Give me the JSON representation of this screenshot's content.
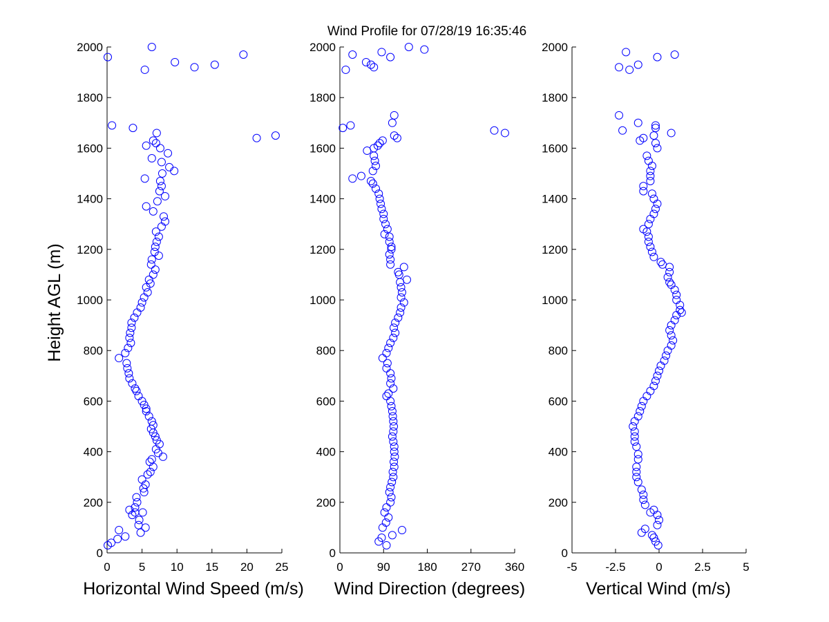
{
  "title": "Wind Profile for  07/28/19 16:35:46",
  "colors": {
    "marker": "#0000ff",
    "axis": "#000000",
    "background": "#ffffff"
  },
  "chart_data": [
    {
      "type": "scatter",
      "name": "horizontal-wind-speed",
      "xlabel": "Horizontal Wind Speed (m/s)",
      "ylabel": "Height AGL (m)",
      "xlim": [
        0,
        25
      ],
      "ylim": [
        0,
        2000
      ],
      "xticks": [
        0,
        5,
        10,
        15,
        20,
        25
      ],
      "xtick_labels": [
        "0",
        "5",
        "10",
        "15",
        "20",
        "25"
      ],
      "yticks": [
        0,
        200,
        400,
        600,
        800,
        1000,
        1200,
        1400,
        1600,
        1800,
        2000
      ],
      "ytick_labels": [
        "0",
        "200",
        "400",
        "600",
        "800",
        "1000",
        "1200",
        "1400",
        "1600",
        "1800",
        "2000"
      ],
      "points": [
        [
          0.1,
          30
        ],
        [
          0.6,
          40
        ],
        [
          1.5,
          55
        ],
        [
          2.6,
          65
        ],
        [
          1.7,
          90
        ],
        [
          4.8,
          80
        ],
        [
          5.5,
          100
        ],
        [
          4.5,
          110
        ],
        [
          4.6,
          130
        ],
        [
          5.1,
          160
        ],
        [
          4.0,
          160
        ],
        [
          3.6,
          150
        ],
        [
          3.2,
          170
        ],
        [
          4.0,
          180
        ],
        [
          4.3,
          200
        ],
        [
          4.2,
          220
        ],
        [
          5.3,
          240
        ],
        [
          5.2,
          255
        ],
        [
          5.5,
          270
        ],
        [
          5.0,
          290
        ],
        [
          5.8,
          310
        ],
        [
          6.2,
          320
        ],
        [
          6.6,
          340
        ],
        [
          6.1,
          360
        ],
        [
          6.4,
          370
        ],
        [
          8.0,
          380
        ],
        [
          7.3,
          395
        ],
        [
          7.0,
          410
        ],
        [
          7.5,
          430
        ],
        [
          7.1,
          445
        ],
        [
          6.9,
          460
        ],
        [
          6.6,
          475
        ],
        [
          6.3,
          490
        ],
        [
          6.6,
          505
        ],
        [
          6.4,
          520
        ],
        [
          6.0,
          540
        ],
        [
          5.6,
          560
        ],
        [
          5.6,
          570
        ],
        [
          5.3,
          585
        ],
        [
          5.0,
          600
        ],
        [
          4.5,
          620
        ],
        [
          4.2,
          640
        ],
        [
          4.0,
          650
        ],
        [
          3.6,
          670
        ],
        [
          3.2,
          690
        ],
        [
          3.1,
          710
        ],
        [
          2.9,
          730
        ],
        [
          2.8,
          750
        ],
        [
          1.7,
          770
        ],
        [
          2.6,
          790
        ],
        [
          3.0,
          810
        ],
        [
          3.4,
          830
        ],
        [
          3.2,
          850
        ],
        [
          3.3,
          870
        ],
        [
          3.5,
          890
        ],
        [
          3.5,
          910
        ],
        [
          3.9,
          930
        ],
        [
          4.3,
          950
        ],
        [
          4.8,
          970
        ],
        [
          5.0,
          990
        ],
        [
          5.3,
          1010
        ],
        [
          5.8,
          1030
        ],
        [
          5.6,
          1050
        ],
        [
          6.2,
          1065
        ],
        [
          6.0,
          1080
        ],
        [
          6.6,
          1100
        ],
        [
          6.9,
          1120
        ],
        [
          6.3,
          1140
        ],
        [
          6.4,
          1160
        ],
        [
          7.4,
          1175
        ],
        [
          6.8,
          1190
        ],
        [
          6.9,
          1210
        ],
        [
          7.1,
          1230
        ],
        [
          7.4,
          1250
        ],
        [
          7.0,
          1270
        ],
        [
          7.8,
          1290
        ],
        [
          8.3,
          1310
        ],
        [
          8.1,
          1330
        ],
        [
          6.6,
          1350
        ],
        [
          5.6,
          1370
        ],
        [
          7.2,
          1390
        ],
        [
          8.3,
          1410
        ],
        [
          7.5,
          1430
        ],
        [
          7.8,
          1450
        ],
        [
          7.6,
          1470
        ],
        [
          5.4,
          1480
        ],
        [
          7.9,
          1500
        ],
        [
          9.6,
          1510
        ],
        [
          8.9,
          1525
        ],
        [
          7.8,
          1545
        ],
        [
          6.4,
          1560
        ],
        [
          8.7,
          1580
        ],
        [
          7.6,
          1600
        ],
        [
          5.6,
          1610
        ],
        [
          7.0,
          1620
        ],
        [
          6.6,
          1630
        ],
        [
          21.4,
          1640
        ],
        [
          24.1,
          1650
        ],
        [
          7.1,
          1660
        ],
        [
          3.7,
          1680
        ],
        [
          0.7,
          1690
        ],
        [
          5.4,
          1910
        ],
        [
          12.5,
          1920
        ],
        [
          15.4,
          1930
        ],
        [
          9.7,
          1940
        ],
        [
          0.1,
          1960
        ],
        [
          19.5,
          1970
        ],
        [
          6.4,
          2000
        ]
      ]
    },
    {
      "type": "scatter",
      "name": "wind-direction",
      "xlabel": "Wind Direction (degrees)",
      "ylabel": "",
      "xlim": [
        0,
        360
      ],
      "ylim": [
        0,
        2000
      ],
      "xticks": [
        0,
        90,
        180,
        270,
        360
      ],
      "xtick_labels": [
        "0",
        "90",
        "180",
        "270",
        "360"
      ],
      "yticks": [
        0,
        200,
        400,
        600,
        800,
        1000,
        1200,
        1400,
        1600,
        1800,
        2000
      ],
      "ytick_labels": [
        "0",
        "200",
        "400",
        "600",
        "800",
        "1000",
        "1200",
        "1400",
        "1600",
        "1800",
        "2000"
      ],
      "points": [
        [
          96,
          30
        ],
        [
          80,
          45
        ],
        [
          86,
          60
        ],
        [
          108,
          70
        ],
        [
          128,
          90
        ],
        [
          88,
          100
        ],
        [
          95,
          120
        ],
        [
          100,
          140
        ],
        [
          92,
          160
        ],
        [
          96,
          180
        ],
        [
          104,
          200
        ],
        [
          106,
          220
        ],
        [
          102,
          240
        ],
        [
          104,
          260
        ],
        [
          107,
          280
        ],
        [
          110,
          300
        ],
        [
          109,
          320
        ],
        [
          112,
          340
        ],
        [
          111,
          360
        ],
        [
          113,
          380
        ],
        [
          112,
          400
        ],
        [
          112,
          420
        ],
        [
          110,
          440
        ],
        [
          108,
          460
        ],
        [
          110,
          480
        ],
        [
          111,
          500
        ],
        [
          110,
          520
        ],
        [
          109,
          540
        ],
        [
          108,
          560
        ],
        [
          106,
          580
        ],
        [
          104,
          600
        ],
        [
          96,
          620
        ],
        [
          100,
          630
        ],
        [
          110,
          650
        ],
        [
          104,
          670
        ],
        [
          106,
          690
        ],
        [
          104,
          710
        ],
        [
          96,
          730
        ],
        [
          98,
          750
        ],
        [
          88,
          770
        ],
        [
          96,
          790
        ],
        [
          100,
          810
        ],
        [
          104,
          830
        ],
        [
          110,
          850
        ],
        [
          114,
          870
        ],
        [
          111,
          890
        ],
        [
          114,
          910
        ],
        [
          120,
          930
        ],
        [
          124,
          950
        ],
        [
          126,
          970
        ],
        [
          132,
          990
        ],
        [
          126,
          1010
        ],
        [
          128,
          1030
        ],
        [
          126,
          1050
        ],
        [
          124,
          1070
        ],
        [
          138,
          1080
        ],
        [
          122,
          1100
        ],
        [
          120,
          1110
        ],
        [
          132,
          1130
        ],
        [
          104,
          1140
        ],
        [
          104,
          1160
        ],
        [
          102,
          1180
        ],
        [
          106,
          1200
        ],
        [
          106,
          1210
        ],
        [
          102,
          1230
        ],
        [
          102,
          1250
        ],
        [
          92,
          1260
        ],
        [
          98,
          1280
        ],
        [
          94,
          1300
        ],
        [
          90,
          1320
        ],
        [
          90,
          1340
        ],
        [
          86,
          1360
        ],
        [
          84,
          1380
        ],
        [
          82,
          1400
        ],
        [
          80,
          1420
        ],
        [
          74,
          1440
        ],
        [
          68,
          1460
        ],
        [
          64,
          1470
        ],
        [
          44,
          1490
        ],
        [
          26,
          1480
        ],
        [
          68,
          1510
        ],
        [
          74,
          1530
        ],
        [
          72,
          1550
        ],
        [
          70,
          1570
        ],
        [
          56,
          1590
        ],
        [
          70,
          1600
        ],
        [
          78,
          1610
        ],
        [
          82,
          1620
        ],
        [
          88,
          1630
        ],
        [
          118,
          1640
        ],
        [
          112,
          1650
        ],
        [
          318,
          1670
        ],
        [
          340,
          1660
        ],
        [
          6,
          1680
        ],
        [
          22,
          1690
        ],
        [
          108,
          1700
        ],
        [
          112,
          1730
        ],
        [
          12,
          1910
        ],
        [
          70,
          1920
        ],
        [
          64,
          1930
        ],
        [
          54,
          1940
        ],
        [
          104,
          1960
        ],
        [
          26,
          1970
        ],
        [
          86,
          1980
        ],
        [
          142,
          2000
        ],
        [
          174,
          1990
        ]
      ]
    },
    {
      "type": "scatter",
      "name": "vertical-wind",
      "xlabel": "Vertical Wind (m/s)",
      "ylabel": "",
      "xlim": [
        -5,
        5
      ],
      "ylim": [
        0,
        2000
      ],
      "xticks": [
        -5,
        -2.5,
        0,
        2.5,
        5
      ],
      "xtick_labels": [
        "-5",
        "-2.5",
        "0",
        "2.5",
        "5"
      ],
      "yticks": [
        0,
        200,
        400,
        600,
        800,
        1000,
        1200,
        1400,
        1600,
        1800,
        2000
      ],
      "ytick_labels": [
        "0",
        "200",
        "400",
        "600",
        "800",
        "1000",
        "1200",
        "1400",
        "1600",
        "1800",
        "2000"
      ],
      "points": [
        [
          -0.05,
          30
        ],
        [
          -0.2,
          45
        ],
        [
          -0.3,
          60
        ],
        [
          -1.0,
          80
        ],
        [
          -0.4,
          70
        ],
        [
          -0.8,
          95
        ],
        [
          -0.1,
          110
        ],
        [
          0.0,
          130
        ],
        [
          -0.1,
          150
        ],
        [
          -0.5,
          160
        ],
        [
          -0.3,
          170
        ],
        [
          -0.8,
          190
        ],
        [
          -0.9,
          210
        ],
        [
          -0.9,
          230
        ],
        [
          -1.0,
          250
        ],
        [
          -1.2,
          280
        ],
        [
          -1.3,
          300
        ],
        [
          -1.3,
          320
        ],
        [
          -1.3,
          340
        ],
        [
          -1.2,
          370
        ],
        [
          -1.2,
          390
        ],
        [
          -1.3,
          420
        ],
        [
          -1.4,
          440
        ],
        [
          -1.4,
          460
        ],
        [
          -1.4,
          480
        ],
        [
          -1.5,
          500
        ],
        [
          -1.4,
          520
        ],
        [
          -1.2,
          540
        ],
        [
          -1.1,
          560
        ],
        [
          -1.0,
          580
        ],
        [
          -0.9,
          600
        ],
        [
          -0.7,
          620
        ],
        [
          -0.5,
          640
        ],
        [
          -0.3,
          660
        ],
        [
          -0.2,
          680
        ],
        [
          -0.1,
          700
        ],
        [
          0.0,
          720
        ],
        [
          0.1,
          740
        ],
        [
          0.3,
          760
        ],
        [
          0.4,
          780
        ],
        [
          0.5,
          800
        ],
        [
          0.7,
          820
        ],
        [
          0.8,
          840
        ],
        [
          0.7,
          860
        ],
        [
          0.6,
          880
        ],
        [
          0.7,
          900
        ],
        [
          0.9,
          920
        ],
        [
          1.0,
          940
        ],
        [
          1.3,
          950
        ],
        [
          1.2,
          960
        ],
        [
          1.2,
          980
        ],
        [
          1.0,
          1000
        ],
        [
          1.0,
          1020
        ],
        [
          0.9,
          1040
        ],
        [
          0.7,
          1060
        ],
        [
          0.6,
          1070
        ],
        [
          0.5,
          1090
        ],
        [
          0.6,
          1110
        ],
        [
          0.6,
          1130
        ],
        [
          0.2,
          1140
        ],
        [
          0.1,
          1150
        ],
        [
          -0.3,
          1170
        ],
        [
          -0.4,
          1190
        ],
        [
          -0.5,
          1210
        ],
        [
          -0.6,
          1230
        ],
        [
          -0.6,
          1250
        ],
        [
          -0.7,
          1270
        ],
        [
          -0.9,
          1280
        ],
        [
          -0.6,
          1300
        ],
        [
          -0.5,
          1320
        ],
        [
          -0.3,
          1340
        ],
        [
          -0.2,
          1360
        ],
        [
          -0.1,
          1380
        ],
        [
          -0.3,
          1400
        ],
        [
          -0.4,
          1420
        ],
        [
          -0.9,
          1430
        ],
        [
          -0.9,
          1450
        ],
        [
          -0.5,
          1470
        ],
        [
          -0.5,
          1490
        ],
        [
          -0.5,
          1510
        ],
        [
          -0.4,
          1530
        ],
        [
          -0.6,
          1550
        ],
        [
          -0.7,
          1570
        ],
        [
          -0.1,
          1600
        ],
        [
          -0.2,
          1620
        ],
        [
          -1.1,
          1630
        ],
        [
          -0.9,
          1640
        ],
        [
          -0.3,
          1650
        ],
        [
          -2.1,
          1670
        ],
        [
          -0.2,
          1680
        ],
        [
          0.7,
          1660
        ],
        [
          -0.2,
          1690
        ],
        [
          -1.2,
          1700
        ],
        [
          -2.3,
          1730
        ],
        [
          -1.7,
          1910
        ],
        [
          -2.3,
          1920
        ],
        [
          -1.2,
          1930
        ],
        [
          -1.9,
          1980
        ],
        [
          -0.1,
          1960
        ],
        [
          0.9,
          1970
        ]
      ]
    }
  ]
}
